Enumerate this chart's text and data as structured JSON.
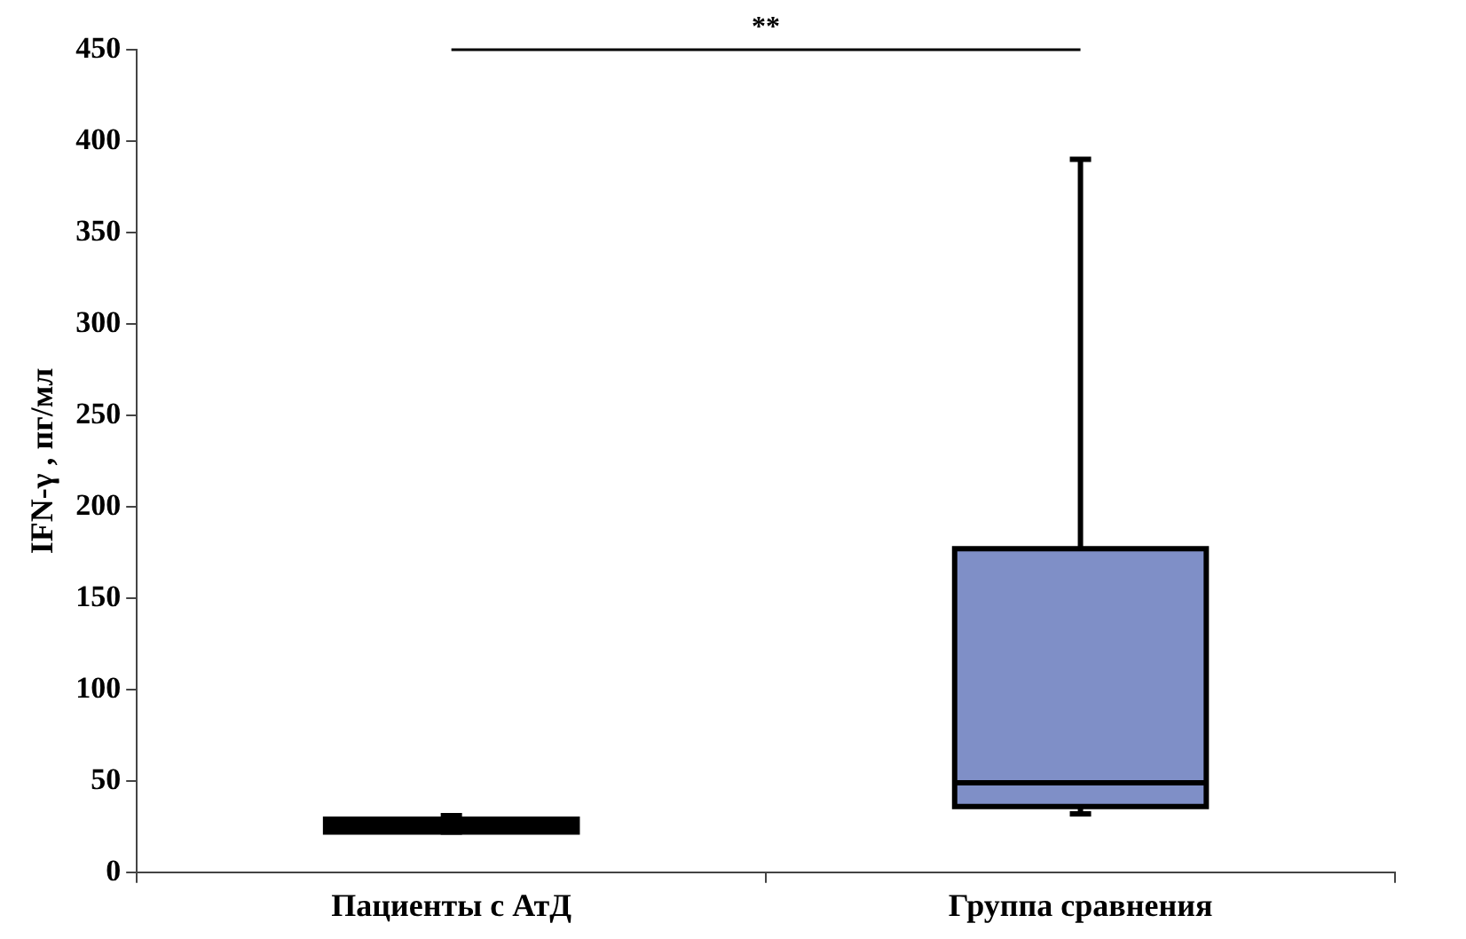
{
  "chart_data": {
    "type": "box",
    "ylabel": "IFN-γ , пг/мл",
    "categories": [
      "Пациенты с АтД",
      "Группа сравнения"
    ],
    "colors": [
      "#000000",
      "#7f8fc7"
    ],
    "boxes": [
      {
        "low": 22,
        "q1": 22,
        "median": 26,
        "q3": 29,
        "high": 31
      },
      {
        "low": 32,
        "q1": 36,
        "median": 49,
        "q3": 177,
        "high": 390
      }
    ],
    "ylim": [
      0,
      450
    ],
    "yticks": [
      0,
      50,
      100,
      150,
      200,
      250,
      300,
      350,
      400,
      450
    ],
    "grid": false,
    "legend": false,
    "annotations": [
      "**"
    ]
  }
}
